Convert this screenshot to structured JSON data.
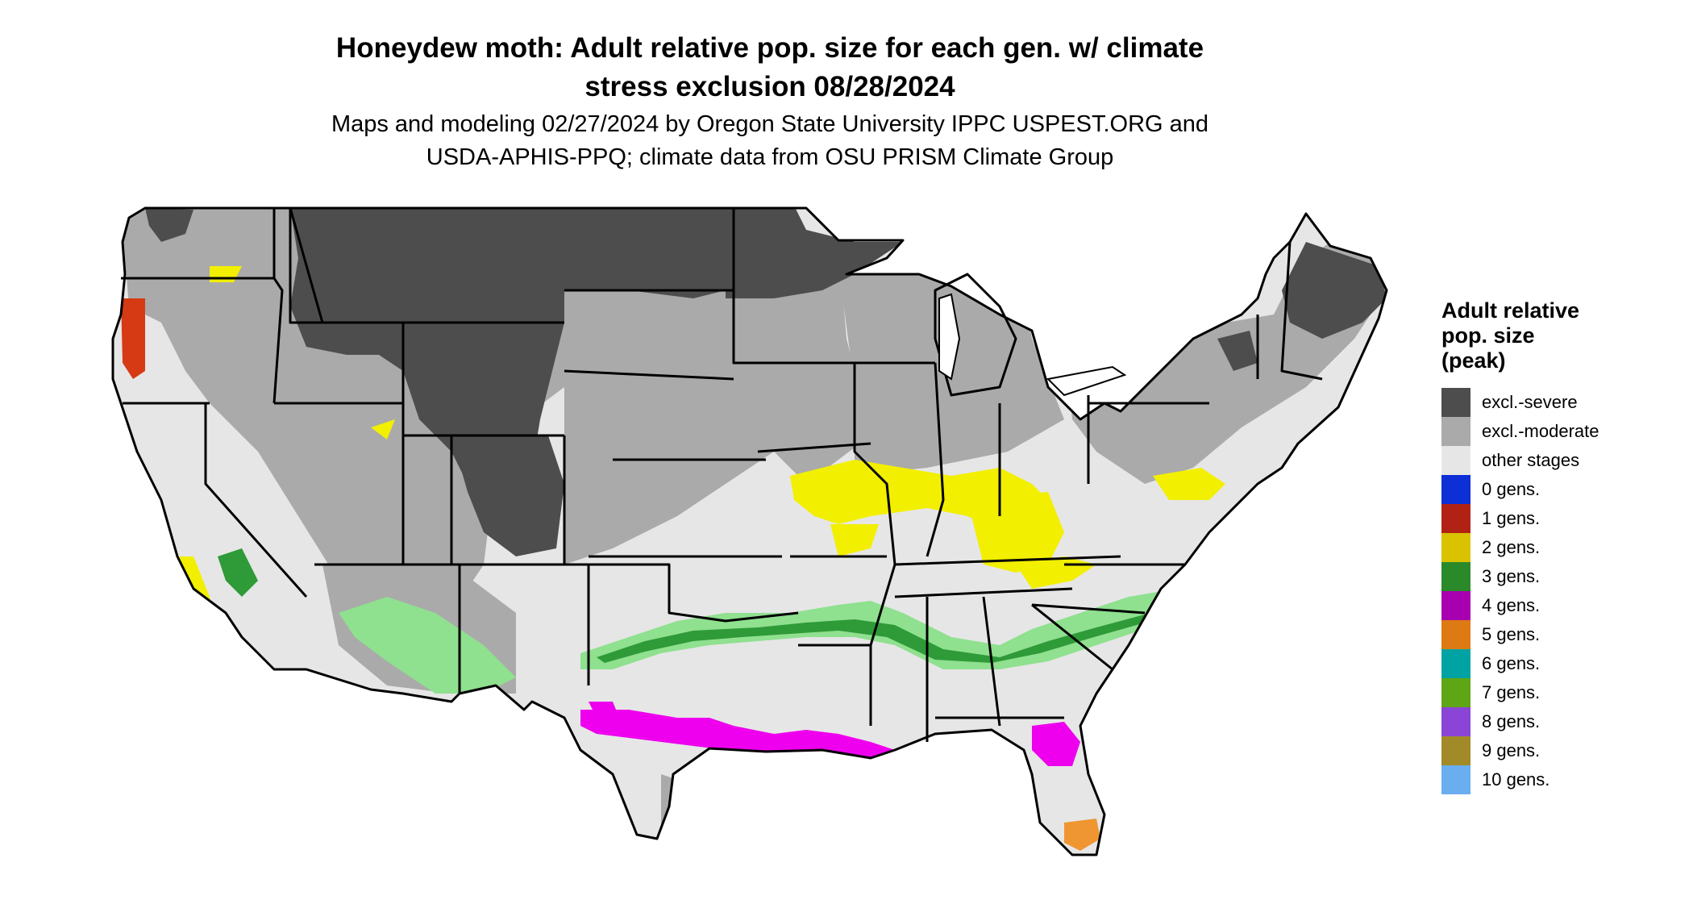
{
  "title": "Honeydew moth: Adult relative pop. size for each gen. w/ climate\nstress exclusion 08/28/2024",
  "subtitle": "Maps and modeling 02/27/2024 by Oregon State University IPPC USPEST.ORG and\nUSDA-APHIS-PPQ; climate data from OSU PRISM Climate Group",
  "legend": {
    "title": "Adult relative\npop. size\n(peak)",
    "items": [
      {
        "label": "excl.-severe",
        "color": "#4d4d4d"
      },
      {
        "label": "excl.-moderate",
        "color": "#aaaaaa"
      },
      {
        "label": "other stages",
        "color": "#e6e6e6"
      },
      {
        "label": "0 gens.",
        "color": "#0c2fd6"
      },
      {
        "label": "1 gens.",
        "color": "#b22214"
      },
      {
        "label": "2 gens.",
        "color": "#d9c200"
      },
      {
        "label": "3 gens.",
        "color": "#2a8a2a"
      },
      {
        "label": "4 gens.",
        "color": "#a800b0"
      },
      {
        "label": "5 gens.",
        "color": "#de7a14"
      },
      {
        "label": "6 gens.",
        "color": "#00a3a3"
      },
      {
        "label": "7 gens.",
        "color": "#5fa616"
      },
      {
        "label": "8 gens.",
        "color": "#8a44d6"
      },
      {
        "label": "9 gens.",
        "color": "#a38a28"
      },
      {
        "label": "10 gens.",
        "color": "#6aaef0"
      }
    ]
  },
  "map_colors": {
    "background": "#ffffff",
    "state_border": "#000000",
    "excl_severe": "#4d4d4d",
    "excl_moderate": "#aaaaaa",
    "other_stages": "#e6e6e6",
    "two_gens_map": "#f2ef00",
    "three_gens_map": "#2f9a38",
    "three_gens_light": "#8fe08f",
    "four_gens_map": "#ee00ee",
    "five_gens_map": "#ef9632",
    "one_gens_map": "#d63a14"
  }
}
